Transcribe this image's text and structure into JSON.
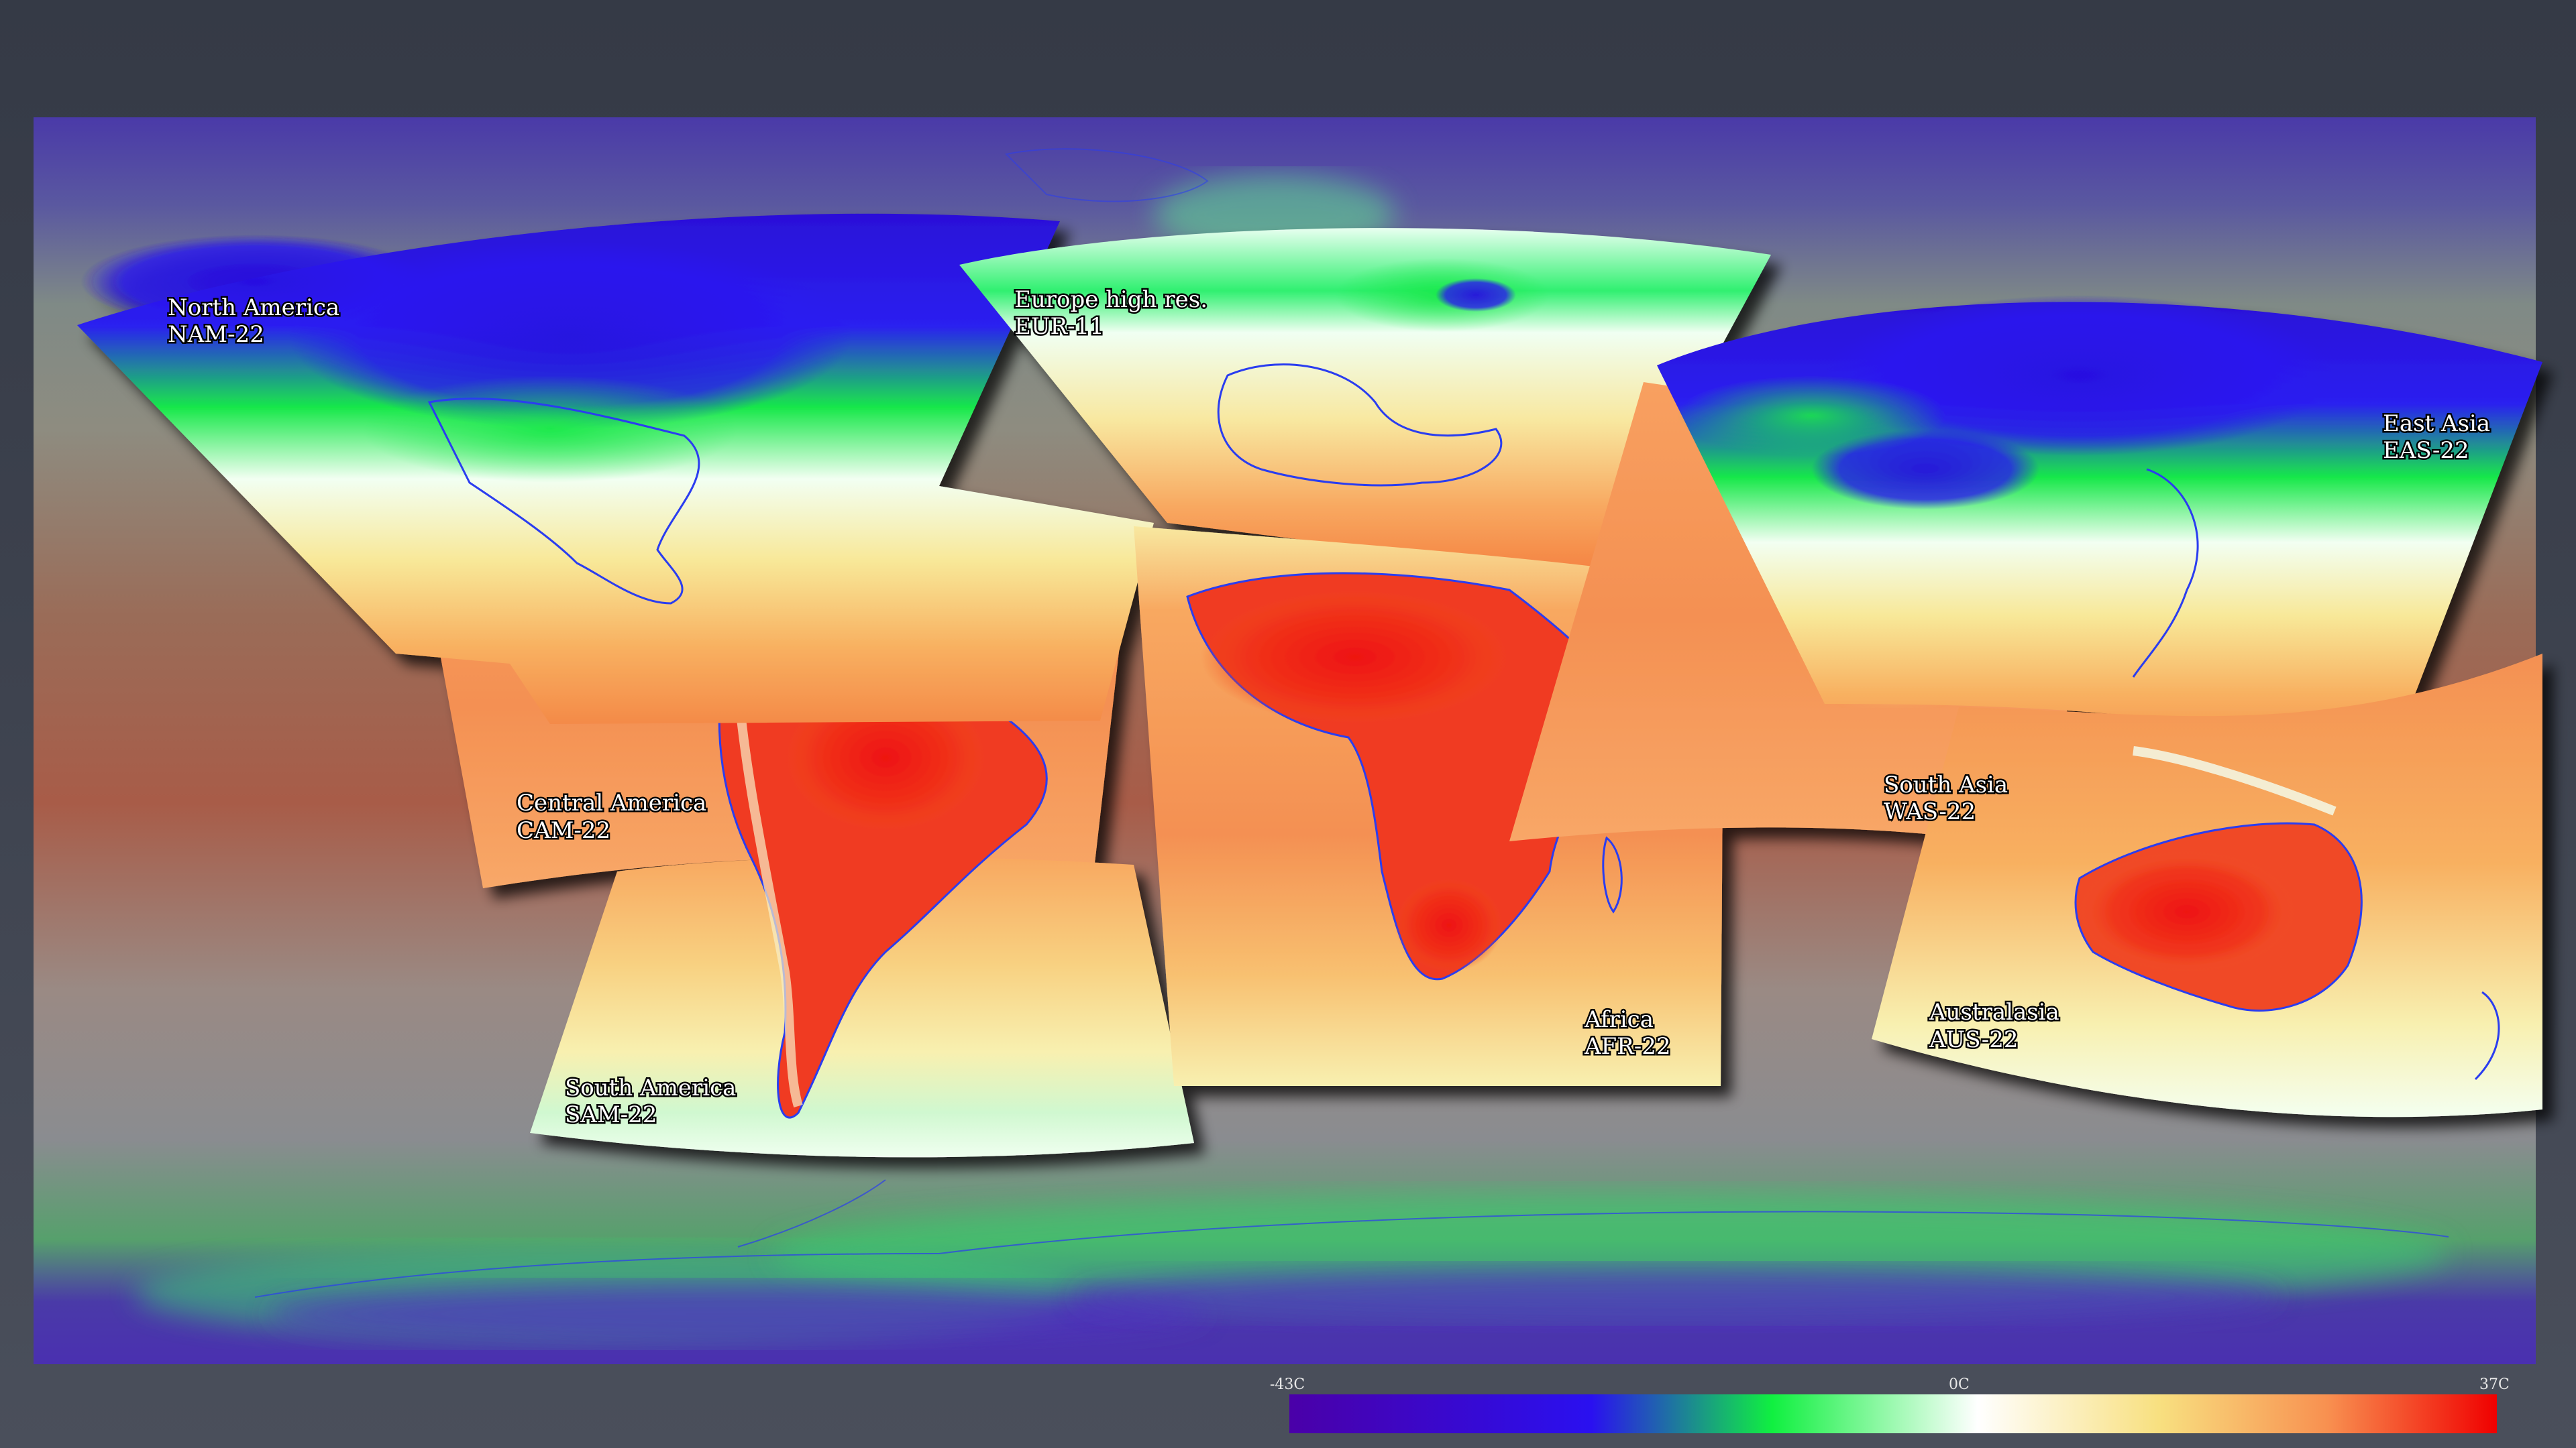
{
  "map": {
    "regions": [
      {
        "id": "nam",
        "name": "North America",
        "code": "NAM-22"
      },
      {
        "id": "eur",
        "name": "Europe high res.",
        "code": "EUR-11"
      },
      {
        "id": "cam",
        "name": "Central America",
        "code": "CAM-22"
      },
      {
        "id": "sam",
        "name": "South America",
        "code": "SAM-22"
      },
      {
        "id": "afr",
        "name": "Africa",
        "code": "AFR-22"
      },
      {
        "id": "was",
        "name": "South Asia",
        "code": "WAS-22"
      },
      {
        "id": "eas",
        "name": "East Asia",
        "code": "EAS-22"
      },
      {
        "id": "aus",
        "name": "Australasia",
        "code": "AUS-22"
      }
    ],
    "colors": {
      "coastline": "#2a3cf0",
      "very_cold": "#4a00b0",
      "cold": "#2a10e8",
      "cool": "#10f040",
      "neutral": "#f4fff4",
      "mild": "#f8e890",
      "warm": "#f8a050",
      "hot": "#f02020"
    }
  },
  "colorbar": {
    "min_label": "-43C",
    "mid_label": "0C",
    "max_label": "37C",
    "min_value": -43,
    "mid_value": 0,
    "max_value": 37
  }
}
